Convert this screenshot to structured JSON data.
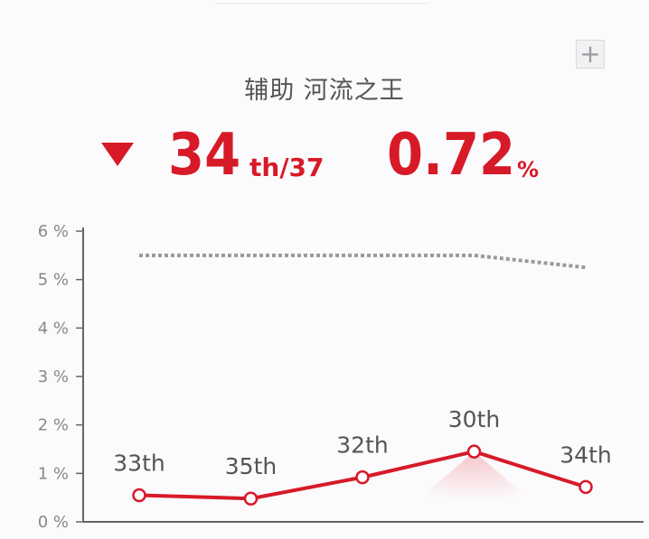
{
  "header": {
    "title": "辅助 河流之王",
    "add_button_label": "+",
    "rank_arrow_icon": "triangle-down-icon",
    "rank_value": "34",
    "rank_suffix": "th/37",
    "rate_value": "0.72",
    "rate_unit": "%"
  },
  "colors": {
    "accent": "#d71a28",
    "reference_line": "#9a9a9a",
    "axis": "#666666"
  },
  "chart_data": {
    "type": "line",
    "ylim": [
      0,
      6
    ],
    "y_ticks": [
      "0 %",
      "1 %",
      "2 %",
      "3 %",
      "4 %",
      "5 %",
      "6 %"
    ],
    "grid": false,
    "series": [
      {
        "style": "solid",
        "color": "#d71a28",
        "values": [
          0.55,
          0.48,
          0.92,
          1.45,
          0.72
        ],
        "labels": [
          "33th",
          "35th",
          "32th",
          "30th",
          "34th"
        ]
      },
      {
        "style": "dotted",
        "color": "#9a9a9a",
        "values": [
          5.5,
          5.5,
          5.5,
          5.5,
          5.25
        ]
      }
    ]
  }
}
